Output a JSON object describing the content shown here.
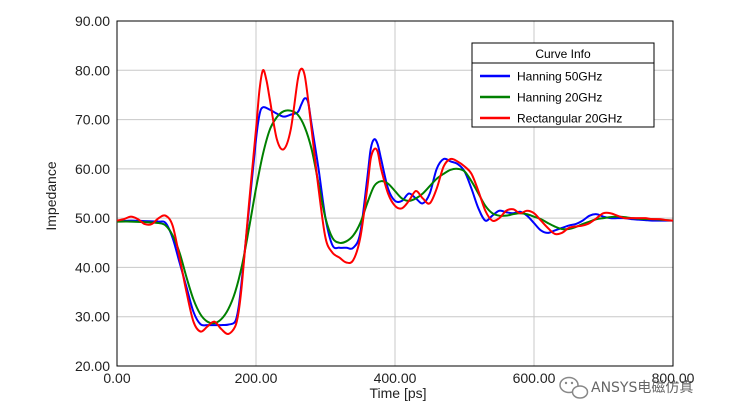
{
  "chart_data": {
    "type": "line",
    "xlabel": "Time [ps]",
    "ylabel": "Impedance",
    "xlim": [
      0,
      800
    ],
    "ylim": [
      20,
      90
    ],
    "xticks": [
      0,
      200,
      400,
      600,
      800
    ],
    "xtick_labels": [
      "0.00",
      "200.00",
      "400.00",
      "600.00",
      "800.00"
    ],
    "yticks": [
      20,
      30,
      40,
      50,
      60,
      70,
      80,
      90
    ],
    "ytick_labels": [
      "20.00",
      "30.00",
      "40.00",
      "50.00",
      "60.00",
      "70.00",
      "80.00",
      "90.00"
    ],
    "grid": true,
    "legend_position": "top-right",
    "legend_title": "Curve Info",
    "series": [
      {
        "name": "Hanning 50GHz",
        "color": "#0000ff",
        "x": [
          0,
          20,
          40,
          60,
          70,
          80,
          90,
          100,
          110,
          120,
          130,
          140,
          150,
          160,
          170,
          175,
          180,
          190,
          200,
          205,
          210,
          220,
          230,
          240,
          250,
          260,
          265,
          270,
          275,
          280,
          290,
          300,
          310,
          320,
          330,
          340,
          350,
          360,
          365,
          370,
          375,
          380,
          390,
          400,
          410,
          420,
          430,
          440,
          450,
          460,
          470,
          480,
          490,
          500,
          510,
          520,
          530,
          540,
          550,
          560,
          570,
          580,
          590,
          600,
          610,
          620,
          630,
          640,
          650,
          660,
          670,
          680,
          690,
          700,
          710,
          720,
          730,
          740,
          750,
          760,
          770,
          780,
          790,
          800
        ],
        "y": [
          49.3,
          49.5,
          49.4,
          49.3,
          49.0,
          46.0,
          41.0,
          36.0,
          31.0,
          28.5,
          28.3,
          28.3,
          28.3,
          28.4,
          29.0,
          32.0,
          38.0,
          52.0,
          66.0,
          71.0,
          72.5,
          72.0,
          71.2,
          70.6,
          71.0,
          71.5,
          73.0,
          74.3,
          73.5,
          69.0,
          60.0,
          50.0,
          44.5,
          44.0,
          44.0,
          44.0,
          47.0,
          58.0,
          64.0,
          66.0,
          65.0,
          62.0,
          56.0,
          53.5,
          53.5,
          55.0,
          54.0,
          53.0,
          55.0,
          60.0,
          62.0,
          61.5,
          61.0,
          59.5,
          56.0,
          52.0,
          49.5,
          50.5,
          51.5,
          51.2,
          51.0,
          51.3,
          50.5,
          49.0,
          47.5,
          47.0,
          47.5,
          48.0,
          48.5,
          48.8,
          49.5,
          50.5,
          50.8,
          50.3,
          50.0,
          50.0,
          50.0,
          49.8,
          49.7,
          49.6,
          49.5,
          49.5,
          49.5,
          49.5
        ]
      },
      {
        "name": "Hanning 20GHz",
        "color": "#008000",
        "x": [
          0,
          20,
          40,
          60,
          70,
          80,
          90,
          100,
          110,
          120,
          130,
          140,
          150,
          160,
          170,
          180,
          190,
          200,
          210,
          220,
          230,
          240,
          250,
          260,
          270,
          280,
          290,
          300,
          310,
          320,
          330,
          340,
          350,
          360,
          370,
          380,
          390,
          400,
          410,
          420,
          430,
          440,
          450,
          460,
          470,
          480,
          490,
          500,
          510,
          520,
          530,
          540,
          550,
          560,
          570,
          580,
          590,
          600,
          610,
          620,
          630,
          640,
          650,
          660,
          670,
          680,
          690,
          700,
          710,
          720,
          730,
          740,
          750,
          760,
          770,
          780,
          790,
          800
        ],
        "y": [
          49.3,
          49.3,
          49.2,
          49.0,
          48.5,
          46.5,
          43.0,
          38.0,
          33.5,
          30.5,
          29.0,
          28.7,
          29.5,
          31.5,
          35.0,
          40.5,
          48.0,
          56.0,
          63.0,
          68.0,
          70.5,
          71.7,
          71.8,
          71.0,
          68.5,
          64.0,
          57.0,
          50.0,
          46.0,
          45.0,
          45.3,
          46.5,
          49.0,
          53.0,
          56.5,
          57.5,
          57.0,
          55.5,
          54.0,
          53.5,
          54.0,
          55.0,
          56.5,
          58.0,
          59.0,
          59.8,
          60.0,
          59.5,
          57.5,
          55.0,
          52.5,
          51.0,
          50.5,
          50.5,
          50.8,
          51.0,
          50.8,
          50.3,
          49.8,
          49.0,
          48.3,
          47.8,
          47.8,
          48.2,
          48.8,
          49.3,
          49.8,
          50.0,
          50.2,
          50.3,
          50.2,
          50.0,
          49.9,
          49.8,
          49.8,
          49.7,
          49.6,
          49.5
        ]
      },
      {
        "name": "Rectangular 20GHz",
        "color": "#ff0000",
        "x": [
          0,
          10,
          20,
          30,
          40,
          50,
          60,
          70,
          80,
          90,
          100,
          110,
          120,
          130,
          140,
          150,
          160,
          170,
          175,
          180,
          190,
          200,
          205,
          210,
          215,
          220,
          230,
          240,
          250,
          260,
          265,
          270,
          275,
          280,
          290,
          300,
          310,
          320,
          330,
          340,
          350,
          360,
          365,
          370,
          375,
          380,
          390,
          400,
          410,
          420,
          430,
          440,
          450,
          460,
          470,
          480,
          490,
          500,
          510,
          520,
          530,
          540,
          550,
          560,
          570,
          580,
          590,
          600,
          610,
          620,
          630,
          640,
          650,
          660,
          670,
          680,
          690,
          700,
          710,
          720,
          730,
          740,
          750,
          760,
          770,
          780,
          790,
          800
        ],
        "y": [
          49.5,
          49.8,
          50.3,
          49.8,
          48.8,
          48.8,
          50.0,
          50.5,
          48.5,
          42.0,
          35.0,
          29.0,
          27.0,
          28.0,
          29.0,
          27.5,
          26.5,
          28.0,
          31.0,
          37.0,
          53.0,
          68.0,
          76.0,
          80.0,
          78.0,
          74.0,
          66.0,
          64.0,
          68.0,
          78.0,
          80.3,
          79.0,
          74.0,
          68.0,
          56.0,
          46.0,
          43.0,
          42.0,
          41.0,
          41.5,
          46.0,
          56.0,
          62.0,
          64.0,
          63.5,
          60.0,
          55.0,
          52.5,
          52.0,
          53.5,
          55.5,
          54.0,
          53.0,
          56.0,
          60.5,
          62.0,
          61.5,
          60.5,
          59.0,
          55.5,
          51.5,
          49.5,
          50.0,
          51.5,
          51.8,
          51.0,
          51.5,
          51.0,
          49.5,
          48.0,
          46.8,
          47.0,
          48.0,
          48.3,
          48.5,
          49.0,
          50.0,
          51.0,
          51.0,
          50.5,
          50.0,
          50.0,
          50.0,
          50.0,
          49.8,
          49.8,
          49.6,
          49.5
        ]
      }
    ]
  },
  "watermark": {
    "text": "ANSYS电磁仿真",
    "icon": "wechat-logo-icon"
  }
}
